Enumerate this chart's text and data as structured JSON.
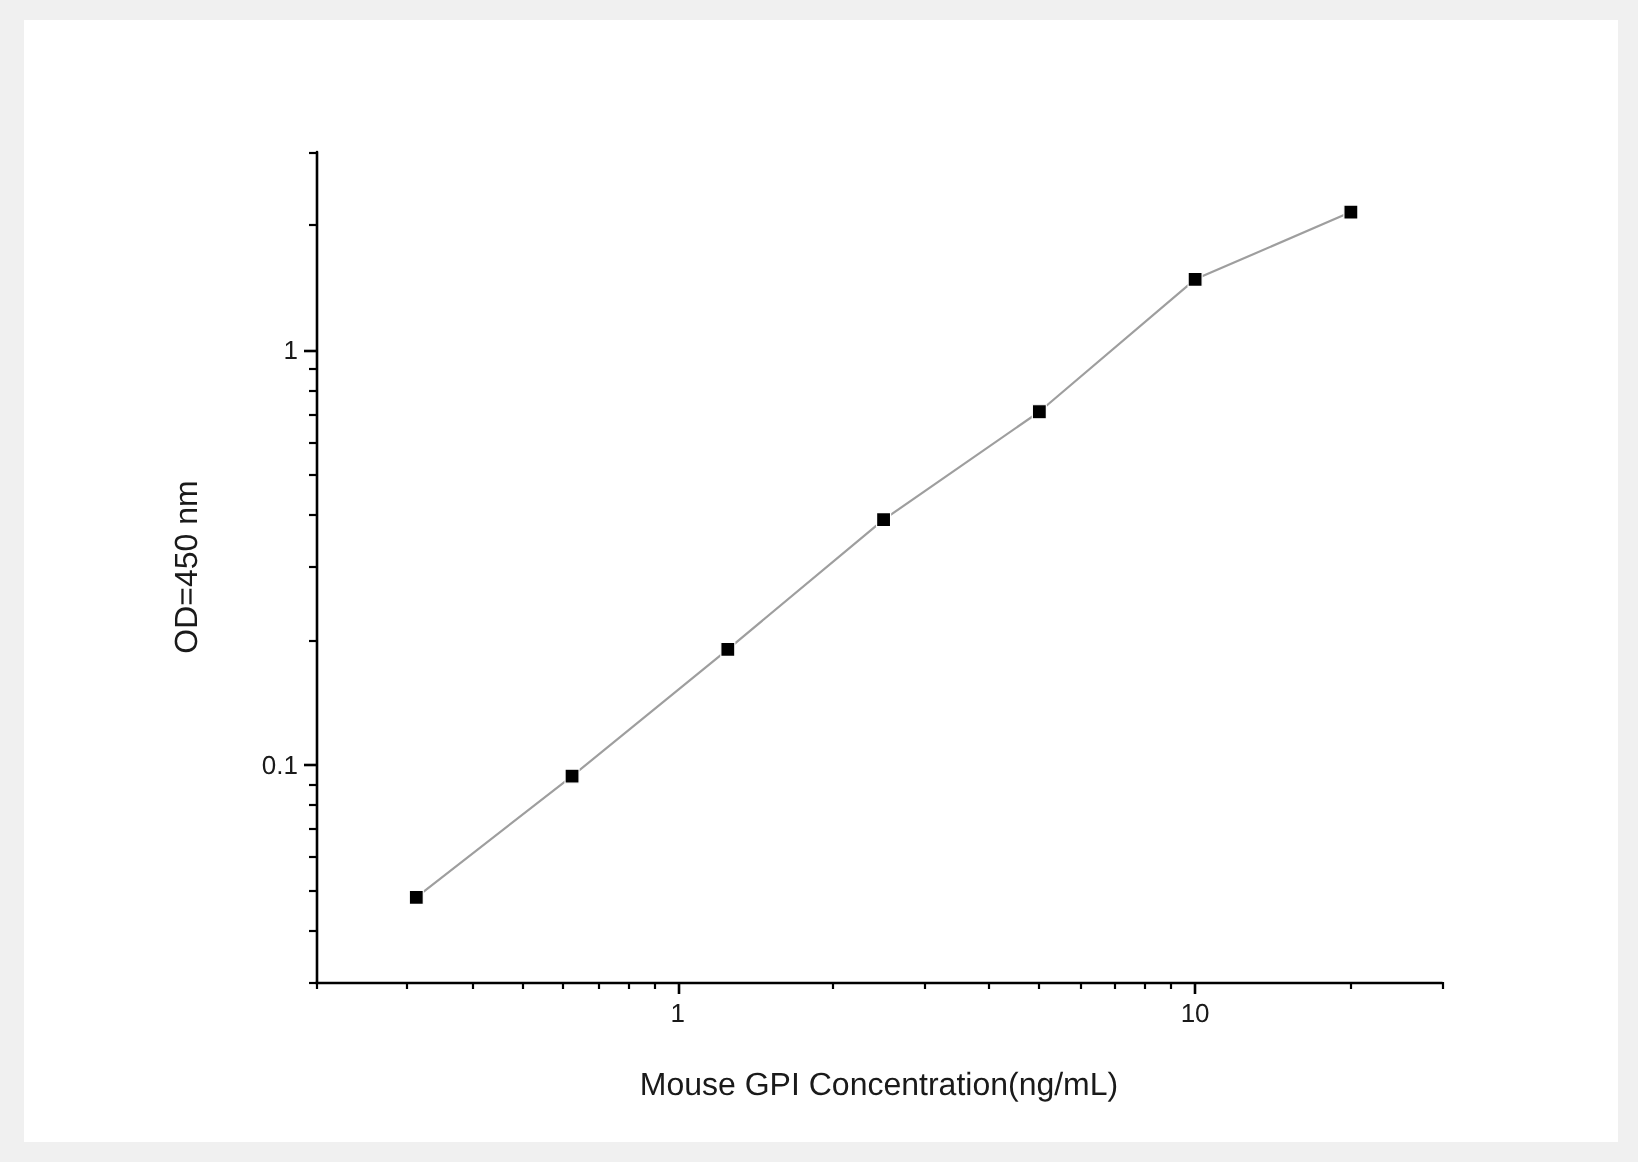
{
  "chart_data": {
    "type": "line",
    "xlabel": "Mouse GPI Concentration(ng/mL)",
    "ylabel": "OD=450 nm",
    "log": "xy",
    "x": [
      0.3125,
      0.625,
      1.25,
      2.5,
      5,
      10,
      20
    ],
    "series": [
      {
        "color": "#000000",
        "values": [
          0.048,
          0.094,
          0.19,
          0.39,
          0.71,
          1.48,
          2.15
        ]
      }
    ],
    "xlim": [
      0.2,
      30
    ],
    "ylim": [
      0.03,
      3
    ],
    "xticks": [
      {
        "value": 0.2,
        "label": null
      },
      {
        "value": 0.3,
        "label": null
      },
      {
        "value": 0.4,
        "label": null
      },
      {
        "value": 0.5,
        "label": null
      },
      {
        "value": 0.6,
        "label": null
      },
      {
        "value": 0.7,
        "label": null
      },
      {
        "value": 0.8,
        "label": null
      },
      {
        "value": 0.9,
        "label": null
      },
      1,
      {
        "value": 2,
        "label": null
      },
      {
        "value": 3,
        "label": null
      },
      {
        "value": 4,
        "label": null
      },
      {
        "value": 5,
        "label": null
      },
      {
        "value": 6,
        "label": null
      },
      {
        "value": 7,
        "label": null
      },
      {
        "value": 8,
        "label": null
      },
      {
        "value": 9,
        "label": null
      },
      10,
      {
        "value": 20,
        "label": null
      },
      {
        "value": 30,
        "label": null
      }
    ],
    "yticks": [
      {
        "value": 0.03,
        "label": null
      },
      {
        "value": 0.04,
        "label": null
      },
      {
        "value": 0.05,
        "label": null
      },
      {
        "value": 0.06,
        "label": null
      },
      {
        "value": 0.07,
        "label": null
      },
      {
        "value": 0.08,
        "label": null
      },
      {
        "value": 0.09,
        "label": null
      },
      0.1,
      {
        "value": 0.2,
        "label": null
      },
      {
        "value": 0.3,
        "label": null
      },
      {
        "value": 0.4,
        "label": null
      },
      {
        "value": 0.5,
        "label": null
      },
      {
        "value": 0.6,
        "label": null
      },
      {
        "value": 0.7,
        "label": null
      },
      {
        "value": 0.8,
        "label": null
      },
      {
        "value": 0.9,
        "label": null
      },
      1,
      {
        "value": 2,
        "label": null
      },
      {
        "value": 3,
        "label": null
      }
    ],
    "grid": false,
    "marker": "square",
    "line_style": "solid"
  }
}
